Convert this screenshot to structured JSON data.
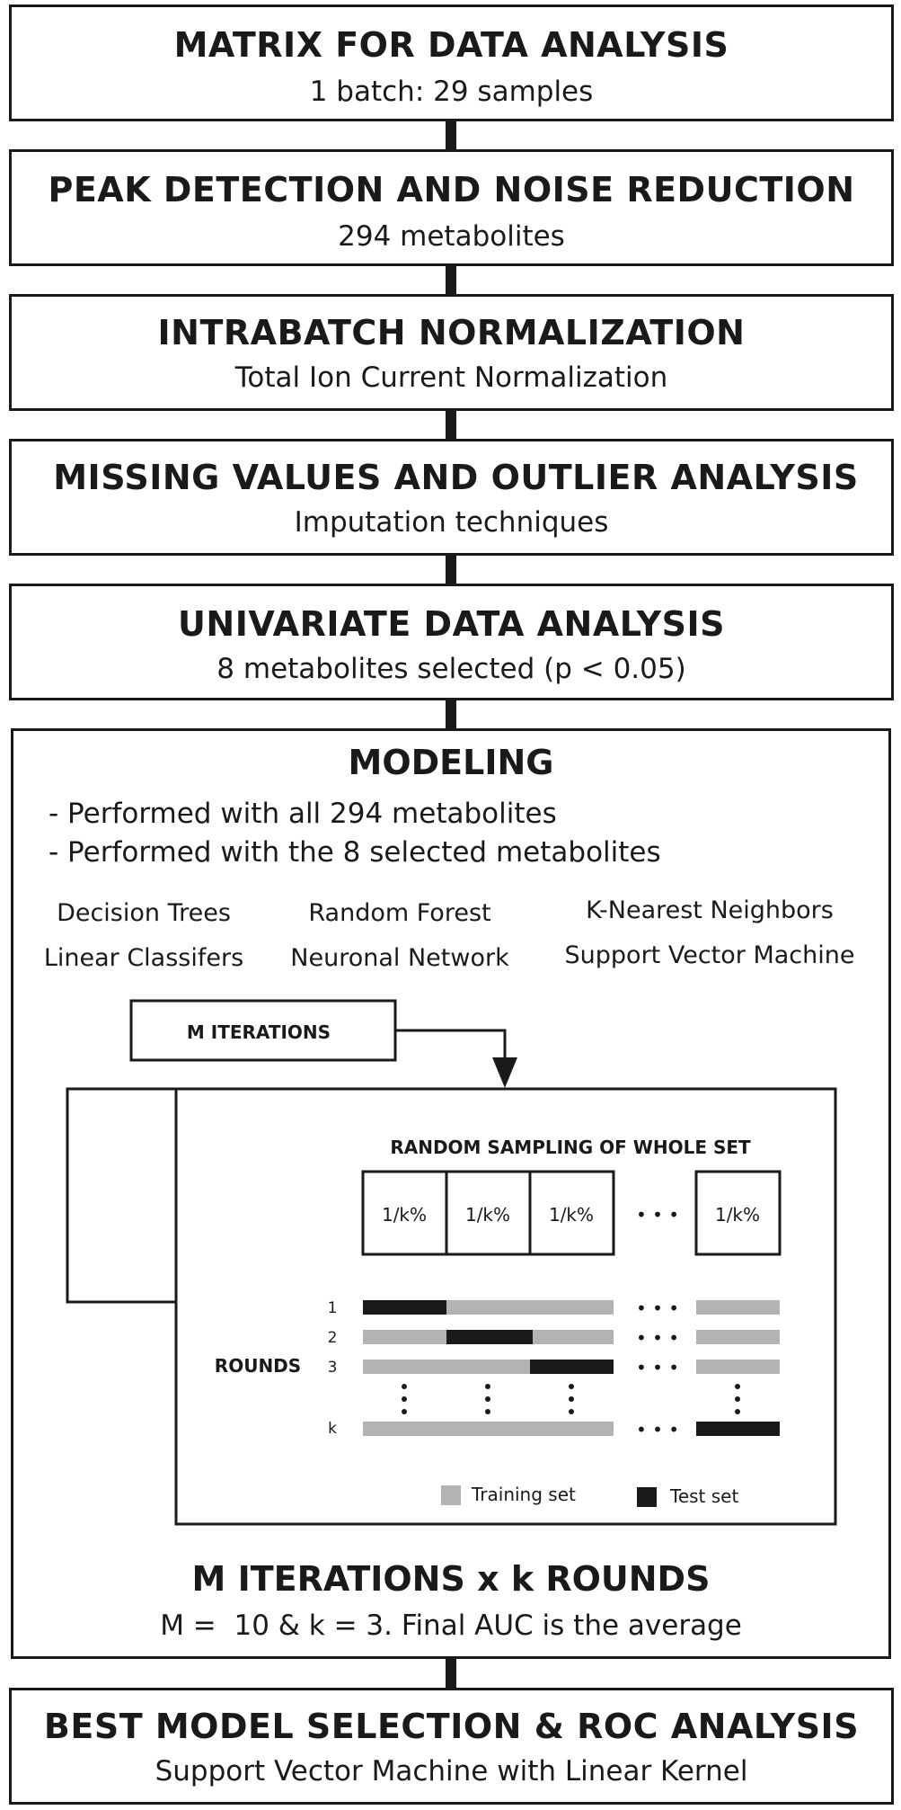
{
  "steps": [
    {
      "title": "MATRIX FOR DATA ANALYSIS",
      "subtitle": "1 batch: 29 samples"
    },
    {
      "title": "PEAK DETECTION AND NOISE REDUCTION",
      "subtitle": "294 metabolites"
    },
    {
      "title": "INTRABATCH NORMALIZATION",
      "subtitle": "Total Ion Current Normalization"
    },
    {
      "title": "MISSING VALUES AND OUTLIER ANALYSIS",
      "subtitle": "Imputation techniques"
    },
    {
      "title": "UNIVARIATE DATA ANALYSIS",
      "subtitle": "8 metabolites selected (p < 0.05)"
    }
  ],
  "modeling": {
    "title": "MODELING",
    "bullets": [
      "- Performed with all 294 metabolites",
      "- Performed with the 8 selected metabolites"
    ],
    "methods": [
      "Decision Trees",
      "Random Forest",
      "K-Nearest Neighbors",
      "Linear Classifers",
      "Neuronal Network",
      "Support Vector Machine"
    ],
    "iterations_label": "M ITERATIONS",
    "inner": {
      "title": "RANDOM SAMPLING OF WHOLE SET",
      "folds": [
        "1/k%",
        "1/k%",
        "1/k%",
        "1/k%"
      ],
      "ellipsis": "• • •",
      "rounds_label": "ROUNDS",
      "round_labels": [
        "1",
        "2",
        "3",
        "k"
      ],
      "legend_training": "Training set",
      "legend_test": "Test set",
      "training_color": "#b3b3b3",
      "test_color": "#1a1a1a"
    },
    "summary_title": "M ITERATIONS x k ROUNDS",
    "summary_text": "M =  10 & k = 3. Final AUC is the average"
  },
  "final_step": {
    "title": "BEST MODEL SELECTION & ROC ANALYSIS",
    "subtitle": "Support Vector Machine with Linear Kernel"
  }
}
